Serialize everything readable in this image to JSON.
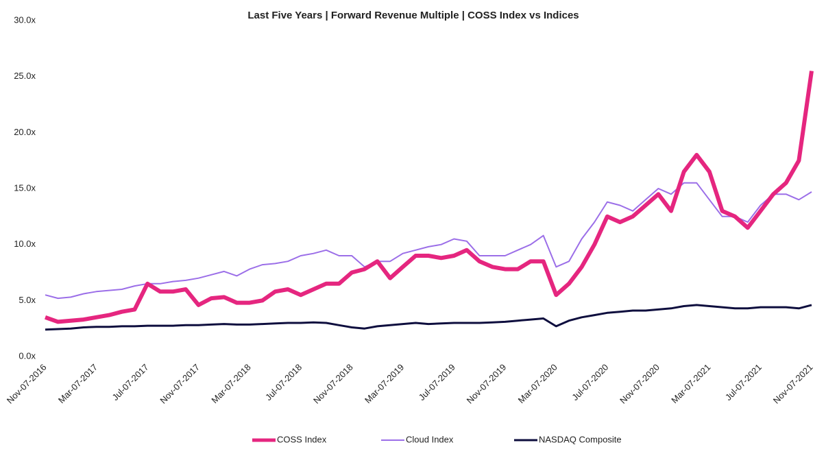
{
  "chart_data": {
    "type": "line",
    "title": "Last Five Years | Forward Revenue Multiple | COSS Index vs Indices",
    "categories": [
      "Nov-07-2016",
      null,
      null,
      null,
      "Mar-07-2017",
      null,
      null,
      null,
      "Jul-07-2017",
      null,
      null,
      null,
      "Nov-07-2017",
      null,
      null,
      null,
      "Mar-07-2018",
      null,
      null,
      null,
      "Jul-07-2018",
      null,
      null,
      null,
      "Nov-07-2018",
      null,
      null,
      null,
      "Mar-07-2019",
      null,
      null,
      null,
      "Jul-07-2019",
      null,
      null,
      null,
      "Nov-07-2019",
      null,
      null,
      null,
      "Mar-07-2020",
      null,
      null,
      null,
      "Jul-07-2020",
      null,
      null,
      null,
      "Nov-07-2020",
      null,
      null,
      null,
      "Mar-07-2021",
      null,
      null,
      null,
      "Jul-07-2021",
      null,
      null,
      null,
      "Nov-07-2021"
    ],
    "series": [
      {
        "name": "COSS Index",
        "color": "#e5267f",
        "values": [
          3.5,
          3.1,
          3.2,
          3.3,
          3.5,
          3.7,
          4.0,
          4.2,
          6.5,
          5.8,
          5.8,
          6.0,
          4.6,
          5.2,
          5.3,
          4.8,
          4.8,
          5.0,
          5.8,
          6.0,
          5.5,
          6.0,
          6.5,
          6.5,
          7.5,
          7.8,
          8.5,
          7.0,
          8.0,
          9.0,
          9.0,
          8.8,
          9.0,
          9.5,
          8.5,
          8.0,
          7.8,
          7.8,
          8.5,
          8.5,
          5.5,
          6.5,
          8.0,
          10.0,
          12.5,
          12.0,
          12.5,
          13.5,
          14.5,
          13.0,
          16.5,
          18.0,
          16.5,
          13.0,
          12.5,
          11.5,
          13.0,
          14.5,
          15.5,
          17.5,
          25.5
        ]
      },
      {
        "name": "Cloud Index",
        "color": "#9b6ee8",
        "values": [
          5.5,
          5.2,
          5.3,
          5.6,
          5.8,
          5.9,
          6.0,
          6.3,
          6.5,
          6.5,
          6.7,
          6.8,
          7.0,
          7.3,
          7.6,
          7.2,
          7.8,
          8.2,
          8.3,
          8.5,
          9.0,
          9.2,
          9.5,
          9.0,
          9.0,
          8.0,
          8.5,
          8.5,
          9.2,
          9.5,
          9.8,
          10.0,
          10.5,
          10.3,
          9.0,
          9.0,
          9.0,
          9.5,
          10.0,
          10.8,
          8.0,
          8.5,
          10.5,
          12.0,
          13.8,
          13.5,
          13.0,
          14.0,
          15.0,
          14.5,
          15.5,
          15.5,
          14.0,
          12.5,
          12.5,
          12.0,
          13.5,
          14.5,
          14.5,
          14.0,
          14.7
        ]
      },
      {
        "name": "NASDAQ Composite",
        "color": "#0e0e3e",
        "values": [
          2.4,
          2.45,
          2.5,
          2.6,
          2.65,
          2.65,
          2.7,
          2.7,
          2.75,
          2.75,
          2.75,
          2.8,
          2.8,
          2.85,
          2.9,
          2.85,
          2.85,
          2.9,
          2.95,
          3.0,
          3.0,
          3.05,
          3.0,
          2.8,
          2.6,
          2.5,
          2.7,
          2.8,
          2.9,
          3.0,
          2.9,
          2.95,
          3.0,
          3.0,
          3.0,
          3.05,
          3.1,
          3.2,
          3.3,
          3.4,
          2.7,
          3.2,
          3.5,
          3.7,
          3.9,
          4.0,
          4.1,
          4.1,
          4.2,
          4.3,
          4.5,
          4.6,
          4.5,
          4.4,
          4.3,
          4.3,
          4.4,
          4.4,
          4.4,
          4.3,
          4.6
        ]
      }
    ],
    "ylim": [
      0,
      30
    ],
    "yticks": [
      {
        "value": 0,
        "label": "0.0x"
      },
      {
        "value": 5,
        "label": "5.0x"
      },
      {
        "value": 10,
        "label": "10.0x"
      },
      {
        "value": 15,
        "label": "15.0x"
      },
      {
        "value": 20,
        "label": "20.0x"
      },
      {
        "value": 25,
        "label": "25.0x"
      },
      {
        "value": 30,
        "label": "30.0x"
      }
    ],
    "grid": false,
    "legend": "bottom"
  }
}
